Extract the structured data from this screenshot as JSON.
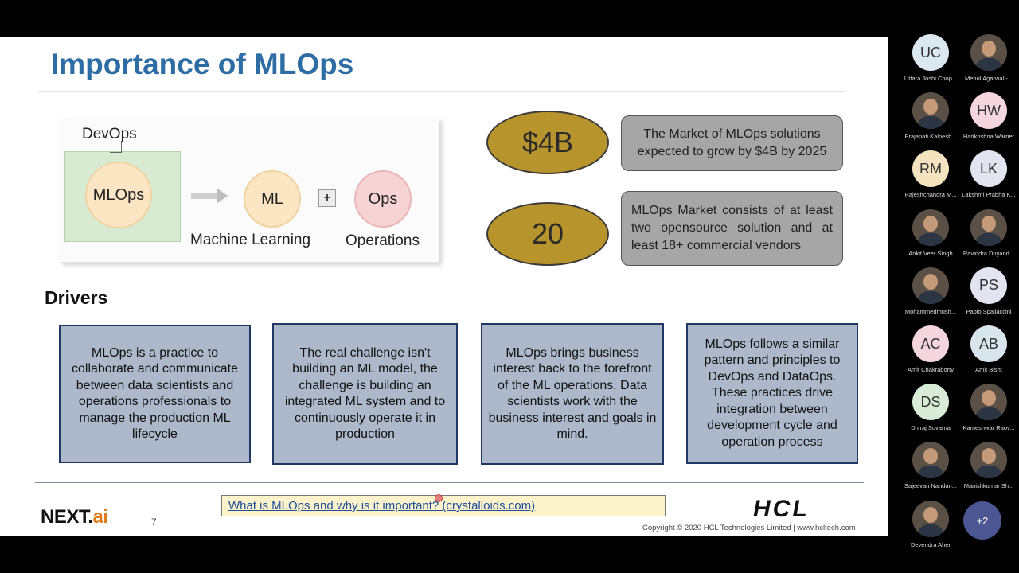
{
  "slide": {
    "title": "Importance of MLOps",
    "diagram": {
      "devops": "DevOps",
      "mlops": "MLOps",
      "ml": "ML",
      "plus": "+",
      "ops": "Ops",
      "ml_caption": "Machine Learning",
      "ops_caption": "Operations"
    },
    "stats": [
      {
        "value": "$4B",
        "text": "The Market of MLOps solutions expected to grow by $4B by 2025"
      },
      {
        "value": "20",
        "text": "MLOps Market consists of at least two opensource solution and at least 18+ commercial vendors"
      }
    ],
    "drivers_heading": "Drivers",
    "drivers": [
      "MLOps is a practice to collaborate and communicate between data scientists and operations professionals to manage the production ML lifecycle",
      "The real challenge isn't building an ML model, the challenge is building an integrated ML system and to continuously operate it in production",
      "MLOps brings business interest back to the forefront of the ML operations. Data scientists work with the business interest and goals in mind.",
      "MLOps follows a similar pattern and principles to DevOps and DataOps. These practices drive integration between development cycle and operation process"
    ],
    "footer": {
      "logo_next": "NEXT.",
      "logo_ai": "ai",
      "page_number": "7",
      "link": "What is MLOps and why is it important? (crystalloids.com)",
      "hcl_logo": "HCL",
      "copyright": "Copyright © 2020 HCL Technologies Limited  |  www.hcltech.com"
    }
  },
  "participants": [
    {
      "initials": "UC",
      "name": "Uttara Joshi Chop...",
      "bg": "#dce8f0"
    },
    {
      "initials": "",
      "name": "Mehul Agarwal -...",
      "bg": "photo"
    },
    {
      "initials": "",
      "name": "Prajapati Kalpesh...",
      "bg": "photo"
    },
    {
      "initials": "HW",
      "name": "Harikrishna Warrier",
      "bg": "#f5d5de"
    },
    {
      "initials": "RM",
      "name": "Rajeshchandra M...",
      "bg": "#f5e3bf"
    },
    {
      "initials": "LK",
      "name": "Lakshmi Prabha K...",
      "bg": "#e2e4f0"
    },
    {
      "initials": "",
      "name": "Ankit Veer Singh",
      "bg": "photo"
    },
    {
      "initials": "",
      "name": "Ravindra Dnyand...",
      "bg": "photo"
    },
    {
      "initials": "",
      "name": "Mohammedmush...",
      "bg": "photo"
    },
    {
      "initials": "PS",
      "name": "Paolo Spallaccini",
      "bg": "#e2e4f0"
    },
    {
      "initials": "AC",
      "name": "Amit Chakraborty",
      "bg": "#f5d5de"
    },
    {
      "initials": "AB",
      "name": "Amit Bisht",
      "bg": "#d9e5ec"
    },
    {
      "initials": "DS",
      "name": "Dhiraj Suvarna",
      "bg": "#d8ecd8"
    },
    {
      "initials": "",
      "name": "Kameshwar Raov...",
      "bg": "photo"
    },
    {
      "initials": "",
      "name": "Sajeevan Nandan...",
      "bg": "photo"
    },
    {
      "initials": "",
      "name": "Manishkumar Sh...",
      "bg": "photo"
    },
    {
      "initials": "",
      "name": "Devendra Aher",
      "bg": "photo"
    }
  ],
  "more_participants": "+2"
}
